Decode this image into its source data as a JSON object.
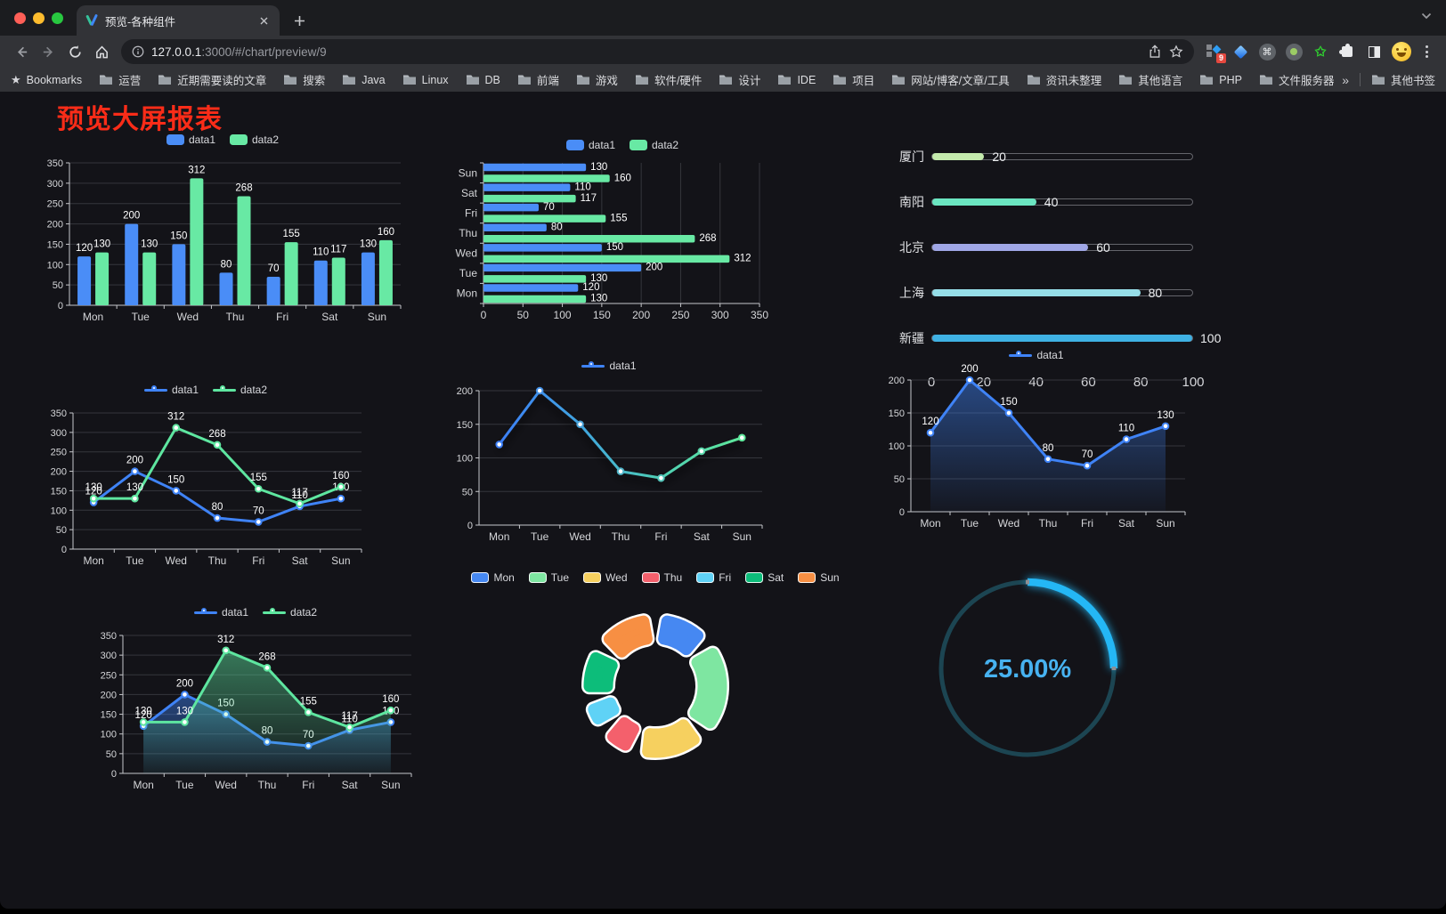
{
  "browser": {
    "tab": {
      "title": "预览-各种组件"
    },
    "url_host": "127.0.0.1",
    "url_rest": ":3000/#/chart/preview/9",
    "bookmarks_label": "Bookmarks",
    "bookmarks": [
      "运营",
      "近期需要读的文章",
      "搜索",
      "Java",
      "Linux",
      "DB",
      "前端",
      "游戏",
      "软件/硬件",
      "设计",
      "IDE",
      "项目",
      "网站/博客/文章/工具",
      "资讯未整理",
      "其他语言",
      "PHP",
      "文件服务器"
    ],
    "bookmarks_overflow": "»",
    "other_bookmarks": "其他书签",
    "extension_badge": "9"
  },
  "page": {
    "title": "预览大屏报表",
    "title_color": "#fa2c18"
  },
  "chart_data": [
    {
      "id": "grouped-bar",
      "type": "bar",
      "categories": [
        "Mon",
        "Tue",
        "Wed",
        "Thu",
        "Fri",
        "Sat",
        "Sun"
      ],
      "series": [
        {
          "name": "data1",
          "color": "#4a8df7",
          "values": [
            120,
            200,
            150,
            80,
            70,
            110,
            130
          ]
        },
        {
          "name": "data2",
          "color": "#68e9a4",
          "values": [
            130,
            130,
            312,
            268,
            155,
            117,
            160
          ]
        }
      ],
      "ylim": [
        0,
        350
      ],
      "yticks": [
        0,
        50,
        100,
        150,
        200,
        250,
        300,
        350
      ],
      "value_labels": true,
      "legend_position": "top",
      "grid": true
    },
    {
      "id": "horizontal-bar",
      "type": "hbar",
      "categories": [
        "Mon",
        "Tue",
        "Wed",
        "Thu",
        "Fri",
        "Sat",
        "Sun"
      ],
      "series": [
        {
          "name": "data1",
          "color": "#4a8df7",
          "values": [
            120,
            200,
            150,
            80,
            70,
            110,
            130
          ]
        },
        {
          "name": "data2",
          "color": "#68e9a4",
          "values": [
            130,
            130,
            312,
            268,
            155,
            117,
            160
          ]
        }
      ],
      "xlim": [
        0,
        350
      ],
      "xticks": [
        0,
        50,
        100,
        150,
        200,
        250,
        300,
        350
      ],
      "value_labels": true,
      "legend_position": "top",
      "grid": true
    },
    {
      "id": "city-progress",
      "type": "progress",
      "max": 100,
      "axis_ticks": [
        0,
        20,
        40,
        60,
        80,
        100
      ],
      "items": [
        {
          "label": "厦门",
          "value": 20,
          "color": "#c4ebad"
        },
        {
          "label": "南阳",
          "value": 40,
          "color": "#6be6c1"
        },
        {
          "label": "北京",
          "value": 60,
          "color": "#a0a7e6"
        },
        {
          "label": "上海",
          "value": 80,
          "color": "#96dee8"
        },
        {
          "label": "新疆",
          "value": 100,
          "color": "#3fb1e3"
        }
      ]
    },
    {
      "id": "line-two",
      "type": "line",
      "categories": [
        "Mon",
        "Tue",
        "Wed",
        "Thu",
        "Fri",
        "Sat",
        "Sun"
      ],
      "series": [
        {
          "name": "data1",
          "color": "#3f83f6",
          "values": [
            120,
            200,
            150,
            80,
            70,
            110,
            130
          ]
        },
        {
          "name": "data2",
          "color": "#5ee6a0",
          "values": [
            130,
            130,
            312,
            268,
            155,
            117,
            160
          ]
        }
      ],
      "ylim": [
        0,
        350
      ],
      "yticks": [
        0,
        50,
        100,
        150,
        200,
        250,
        300,
        350
      ],
      "value_labels": true,
      "markers": true,
      "legend_position": "top",
      "grid": true
    },
    {
      "id": "line-gradient",
      "type": "line",
      "categories": [
        "Mon",
        "Tue",
        "Wed",
        "Thu",
        "Fri",
        "Sat",
        "Sun"
      ],
      "series": [
        {
          "name": "data1",
          "color": "#3f83f6",
          "gradient": [
            "#3d7ff7",
            "#40a4df",
            "#4fd0b4",
            "#5ee89b"
          ],
          "values": [
            120,
            200,
            150,
            80,
            70,
            110,
            130
          ]
        }
      ],
      "ylim": [
        0,
        200
      ],
      "yticks": [
        0,
        50,
        100,
        150,
        200
      ],
      "value_labels": false,
      "markers": true,
      "shadow": true,
      "legend_position": "top",
      "grid": true
    },
    {
      "id": "area-one",
      "type": "line",
      "area": true,
      "categories": [
        "Mon",
        "Tue",
        "Wed",
        "Thu",
        "Fri",
        "Sat",
        "Sun"
      ],
      "series": [
        {
          "name": "data1",
          "color": "#3f83f6",
          "values": [
            120,
            200,
            150,
            80,
            70,
            110,
            130
          ]
        }
      ],
      "ylim": [
        0,
        200
      ],
      "yticks": [
        0,
        50,
        100,
        150,
        200
      ],
      "value_labels": true,
      "markers": true,
      "legend_position": "top",
      "grid": true
    },
    {
      "id": "area-two",
      "type": "line",
      "area": true,
      "categories": [
        "Mon",
        "Tue",
        "Wed",
        "Thu",
        "Fri",
        "Sat",
        "Sun"
      ],
      "series": [
        {
          "name": "data1",
          "color": "#3f83f6",
          "values": [
            120,
            200,
            150,
            80,
            70,
            110,
            130
          ]
        },
        {
          "name": "data2",
          "color": "#5ee6a0",
          "values": [
            130,
            130,
            312,
            268,
            155,
            117,
            160
          ]
        }
      ],
      "ylim": [
        0,
        350
      ],
      "yticks": [
        0,
        50,
        100,
        150,
        200,
        250,
        300,
        350
      ],
      "value_labels": true,
      "markers": true,
      "legend_position": "top",
      "grid": true
    },
    {
      "id": "donut",
      "type": "donut",
      "labels": [
        "Mon",
        "Tue",
        "Wed",
        "Thu",
        "Fri",
        "Sat",
        "Sun"
      ],
      "values": [
        120,
        200,
        150,
        80,
        70,
        110,
        130
      ],
      "colors": [
        "#4688f2",
        "#7ee6a1",
        "#f6d05f",
        "#f4606c",
        "#5fd2f6",
        "#0dbd7a",
        "#f78f43"
      ],
      "border_color": "#ffffff",
      "legend_position": "top"
    },
    {
      "id": "gauge",
      "type": "gauge",
      "percent": 25,
      "value_text": "25.00%",
      "progress_color": "#24b7f5",
      "track_color": "#1c4552",
      "text_color": "#47b2f0"
    }
  ]
}
